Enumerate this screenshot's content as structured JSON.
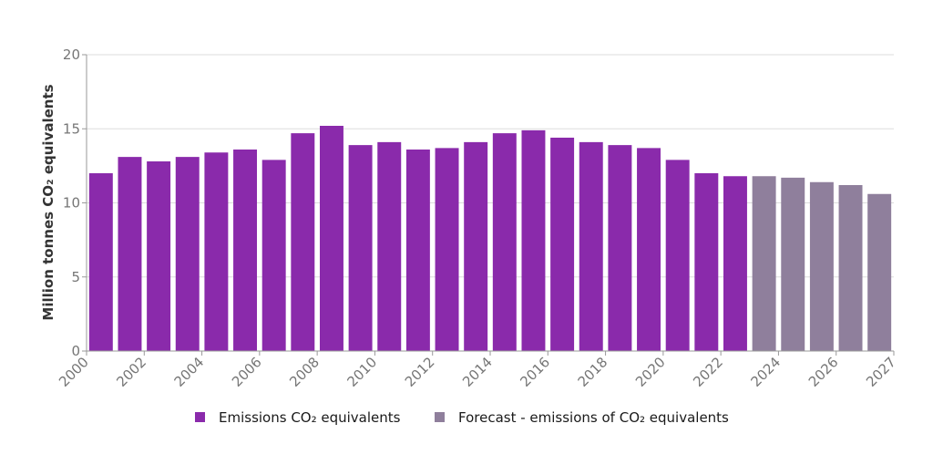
{
  "chart_data": {
    "type": "bar",
    "categories": [
      "2000",
      "2001",
      "2002",
      "2003",
      "2004",
      "2005",
      "2006",
      "2007",
      "2008",
      "2009",
      "2010",
      "2011",
      "2012",
      "2013",
      "2014",
      "2015",
      "2016",
      "2017",
      "2018",
      "2019",
      "2020",
      "2021",
      "2022",
      "2023",
      "2024",
      "2025",
      "2026",
      "2027"
    ],
    "tick_labels": [
      "2000",
      "2002",
      "2004",
      "2006",
      "2008",
      "2010",
      "2012",
      "2014",
      "2016",
      "2018",
      "2020",
      "2022",
      "2024",
      "2026",
      "2027"
    ],
    "series": [
      {
        "name": "Emissions CO₂ equivalents",
        "color": "#8a2aab",
        "values": [
          12.0,
          13.1,
          12.8,
          13.1,
          13.4,
          13.6,
          12.9,
          14.7,
          15.2,
          13.9,
          14.1,
          13.6,
          13.7,
          14.1,
          14.7,
          14.9,
          14.4,
          14.1,
          13.9,
          13.7,
          12.9,
          12.0,
          11.8,
          null,
          null,
          null,
          null,
          null
        ]
      },
      {
        "name": "Forecast - emissions of CO₂ equivalents",
        "color": "#8f7f9c",
        "values": [
          null,
          null,
          null,
          null,
          null,
          null,
          null,
          null,
          null,
          null,
          null,
          null,
          null,
          null,
          null,
          null,
          null,
          null,
          null,
          null,
          null,
          null,
          null,
          11.8,
          11.7,
          11.4,
          11.2,
          10.6
        ]
      }
    ],
    "title": "",
    "xlabel": "",
    "ylabel": "Million tonnes CO₂ equivalents",
    "ylim": [
      0,
      20
    ],
    "yticks": [
      0,
      5,
      10,
      15,
      20
    ],
    "grid": true,
    "legend_position": "bottom"
  }
}
